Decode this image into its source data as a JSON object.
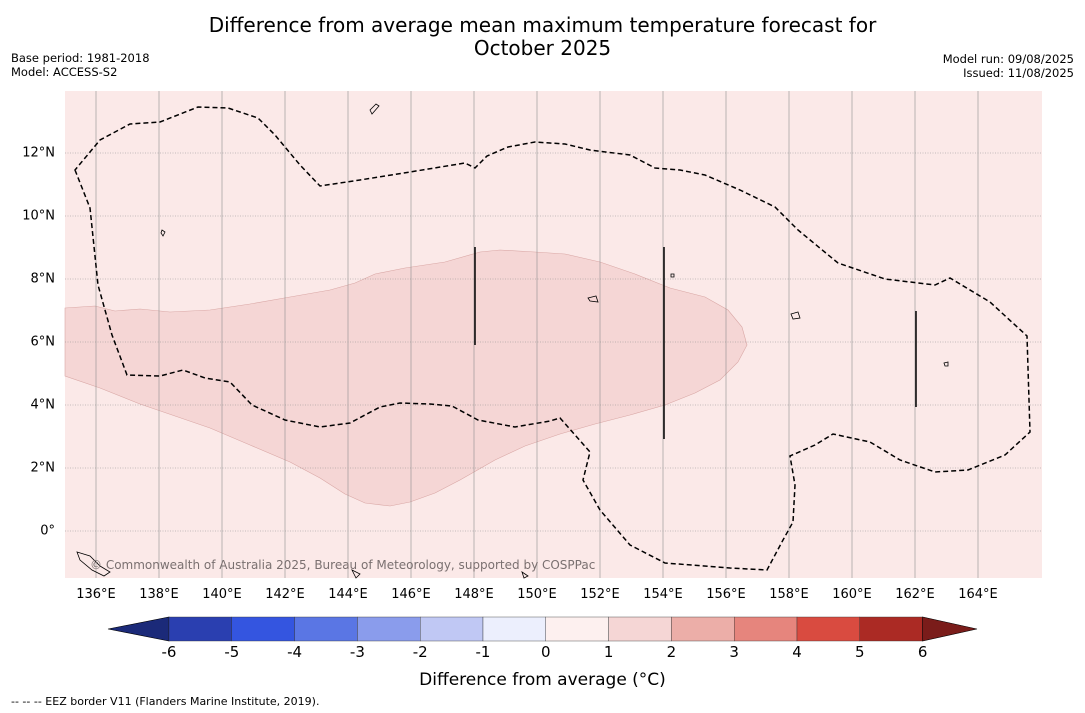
{
  "title_line1": "Difference from average mean maximum temperature forecast for",
  "title_line2": "October 2025",
  "meta_left": [
    "Base period: 1981-2018",
    "Model: ACCESS-S2"
  ],
  "meta_right": [
    "Model run: 09/08/2025",
    "Issued: 11/08/2025"
  ],
  "map": {
    "lon_range": [
      135,
      166
    ],
    "lat_range": [
      -1.5,
      14
    ],
    "lon_ticks": [
      "136°E",
      "138°E",
      "140°E",
      "142°E",
      "144°E",
      "146°E",
      "148°E",
      "150°E",
      "152°E",
      "154°E",
      "156°E",
      "158°E",
      "160°E",
      "162°E",
      "164°E"
    ],
    "lat_ticks": [
      "0°",
      "2°N",
      "4°N",
      "6°N",
      "8°N",
      "10°N",
      "12°N"
    ],
    "background_category": "0 to 1",
    "highlight_region_category": "1 to 2",
    "colors": {
      "background": "#fbe9e8",
      "highlight": "#f5d6d5",
      "grid": "#8e8e8e",
      "border": "#000000"
    },
    "copyright": "© Commonwealth of Australia 2025, Bureau of Meteorology, supported by COSPPac"
  },
  "colorbar": {
    "ticks": [
      "-6",
      "-5",
      "-4",
      "-3",
      "-2",
      "-1",
      "0",
      "1",
      "2",
      "3",
      "4",
      "5",
      "6"
    ],
    "colors": [
      "#1b2a79",
      "#2a3fb0",
      "#3455e0",
      "#5a76e4",
      "#8a9cec",
      "#c0c8f4",
      "#eceffd",
      "#fdf0ef",
      "#f5d6d5",
      "#ecaea8",
      "#e6857d",
      "#d94b40",
      "#ab2a24",
      "#7a1c1a"
    ],
    "label": "Difference from average (°C)"
  },
  "footnote": "--  --  -- EEZ border V11 (Flanders Marine Institute, 2019)."
}
